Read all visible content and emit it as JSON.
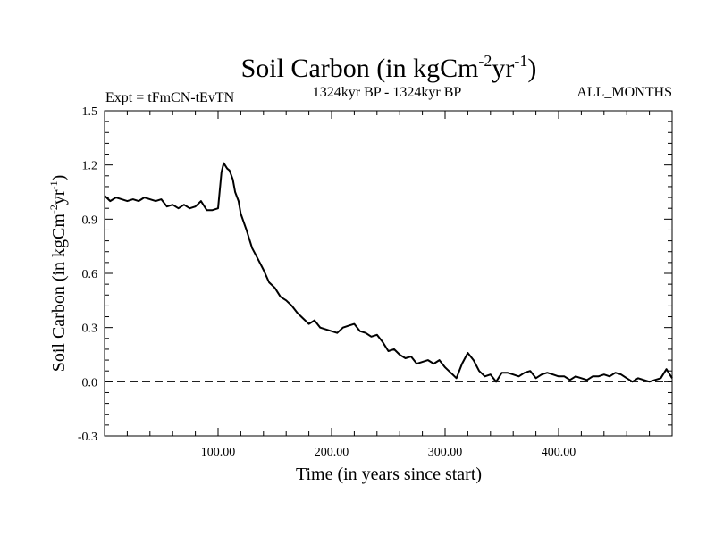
{
  "chart_data": {
    "type": "line",
    "title": {
      "main": "Soil Carbon (in kgCm",
      "sup1": "-2",
      "mid": "yr",
      "sup2": "-1",
      "end": ")"
    },
    "subtitle_left": "Expt = tFmCN-tEvTN",
    "subtitle_center": "1324kyr BP - 1324kyr BP",
    "subtitle_right": "ALL_MONTHS",
    "xlabel": "Time (in years since start)",
    "ylabel": {
      "main": "Soil Carbon (in kgCm",
      "sup1": "-2",
      "mid": "yr",
      "sup2": "-1",
      "end": ")"
    },
    "xlim": [
      0,
      500
    ],
    "ylim": [
      -0.3,
      1.5
    ],
    "x_ticks": [
      100,
      200,
      300,
      400
    ],
    "x_tick_labels": [
      "100.00",
      "200.00",
      "300.00",
      "400.00"
    ],
    "y_ticks": [
      -0.3,
      0.0,
      0.3,
      0.6,
      0.9,
      1.2,
      1.5
    ],
    "y_tick_labels": [
      "-0.3",
      "0.0",
      "0.3",
      "0.6",
      "0.9",
      "1.2",
      "1.5"
    ],
    "reference_line": {
      "y": 0.0,
      "style": "dashed"
    },
    "series": [
      {
        "name": "Soil Carbon",
        "x": [
          0,
          5,
          10,
          15,
          20,
          25,
          30,
          35,
          40,
          45,
          50,
          55,
          60,
          65,
          70,
          75,
          80,
          85,
          90,
          95,
          100,
          103,
          105,
          108,
          110,
          113,
          115,
          118,
          120,
          125,
          130,
          135,
          140,
          145,
          150,
          155,
          160,
          165,
          170,
          175,
          180,
          185,
          190,
          195,
          200,
          205,
          210,
          215,
          220,
          225,
          230,
          235,
          240,
          245,
          250,
          255,
          260,
          265,
          270,
          275,
          280,
          285,
          290,
          295,
          300,
          305,
          310,
          315,
          320,
          325,
          330,
          335,
          340,
          345,
          350,
          355,
          360,
          365,
          370,
          375,
          380,
          385,
          390,
          395,
          400,
          405,
          410,
          415,
          420,
          425,
          430,
          435,
          440,
          445,
          450,
          455,
          460,
          465,
          470,
          475,
          480,
          485,
          490,
          495,
          500
        ],
        "y": [
          1.03,
          1.0,
          1.02,
          1.01,
          1.0,
          1.01,
          1.0,
          1.02,
          1.01,
          1.0,
          1.01,
          0.97,
          0.98,
          0.96,
          0.98,
          0.96,
          0.97,
          1.0,
          0.95,
          0.95,
          0.96,
          1.16,
          1.21,
          1.18,
          1.17,
          1.12,
          1.05,
          1.0,
          0.93,
          0.84,
          0.74,
          0.68,
          0.62,
          0.55,
          0.52,
          0.47,
          0.45,
          0.42,
          0.38,
          0.35,
          0.32,
          0.34,
          0.3,
          0.29,
          0.28,
          0.27,
          0.3,
          0.31,
          0.32,
          0.28,
          0.27,
          0.25,
          0.26,
          0.22,
          0.17,
          0.18,
          0.15,
          0.13,
          0.14,
          0.1,
          0.11,
          0.12,
          0.1,
          0.12,
          0.08,
          0.05,
          0.02,
          0.1,
          0.16,
          0.12,
          0.06,
          0.03,
          0.04,
          0.0,
          0.05,
          0.05,
          0.04,
          0.03,
          0.05,
          0.06,
          0.02,
          0.04,
          0.05,
          0.04,
          0.03,
          0.03,
          0.01,
          0.03,
          0.02,
          0.01,
          0.03,
          0.03,
          0.04,
          0.03,
          0.05,
          0.04,
          0.02,
          0.0,
          0.02,
          0.01,
          0.0,
          0.01,
          0.02,
          0.07,
          0.02
        ]
      }
    ]
  }
}
